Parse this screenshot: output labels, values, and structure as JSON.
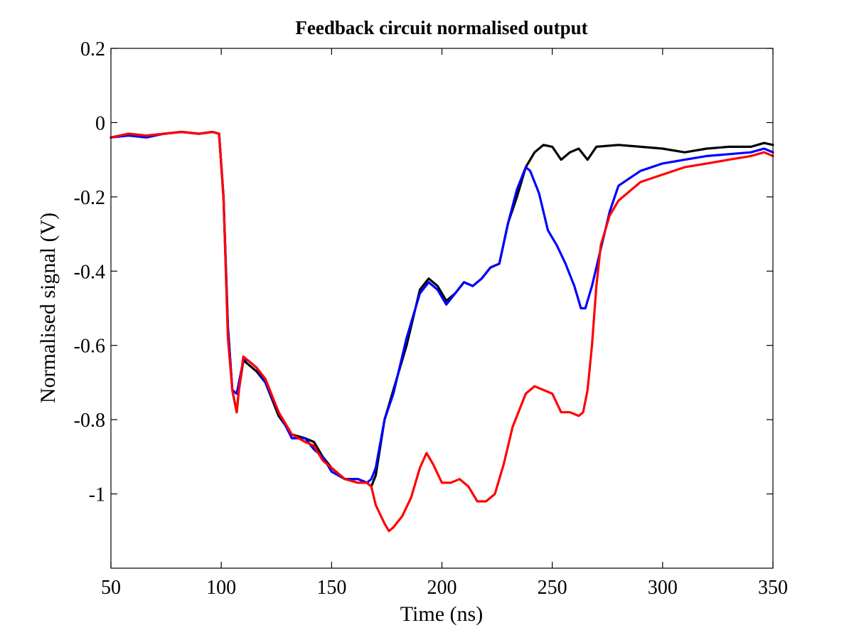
{
  "chart_data": {
    "type": "line",
    "title": "Feedback circuit normalised output",
    "xlabel": "Time (ns)",
    "ylabel": "Normalised signal (V)",
    "xlim": [
      50,
      350
    ],
    "ylim": [
      -1.2,
      0.2
    ],
    "xticks": [
      50,
      100,
      150,
      200,
      250,
      300,
      350
    ],
    "xtick_labels": [
      "50",
      "100",
      "150",
      "200",
      "250",
      "300",
      "350"
    ],
    "yticks": [
      0.2,
      0,
      -0.2,
      -0.4,
      -0.6,
      -0.8,
      -1
    ],
    "ytick_labels": [
      "0.2",
      "0",
      "-0.2",
      "-0.4",
      "-0.6",
      "-0.8",
      "-1"
    ],
    "grid": false,
    "legend": "none",
    "series": [
      {
        "color": "#000000",
        "x": [
          50,
          58,
          66,
          74,
          82,
          90,
          96,
          99,
          101,
          103,
          105,
          107,
          108,
          110,
          112,
          116,
          120,
          126,
          132,
          138,
          142,
          146,
          150,
          156,
          162,
          166,
          168,
          170,
          174,
          178,
          184,
          190,
          194,
          198,
          202,
          206,
          210,
          214,
          218,
          222,
          226,
          230,
          234,
          238,
          242,
          246,
          250,
          254,
          258,
          262,
          266,
          270,
          280,
          290,
          300,
          310,
          320,
          330,
          340,
          346,
          350
        ],
        "y": [
          -0.04,
          -0.03,
          -0.035,
          -0.03,
          -0.025,
          -0.03,
          -0.025,
          -0.03,
          -0.2,
          -0.55,
          -0.72,
          -0.78,
          -0.72,
          -0.64,
          -0.65,
          -0.67,
          -0.7,
          -0.79,
          -0.84,
          -0.85,
          -0.86,
          -0.9,
          -0.93,
          -0.96,
          -0.96,
          -0.97,
          -0.98,
          -0.95,
          -0.8,
          -0.72,
          -0.6,
          -0.45,
          -0.42,
          -0.44,
          -0.48,
          -0.46,
          -0.43,
          -0.44,
          -0.42,
          -0.39,
          -0.38,
          -0.27,
          -0.2,
          -0.12,
          -0.08,
          -0.06,
          -0.065,
          -0.1,
          -0.08,
          -0.07,
          -0.1,
          -0.065,
          -0.06,
          -0.065,
          -0.07,
          -0.08,
          -0.07,
          -0.065,
          -0.065,
          -0.055,
          -0.06
        ]
      },
      {
        "color": "#0000ff",
        "x": [
          50,
          58,
          66,
          74,
          82,
          90,
          96,
          99,
          101,
          103,
          105,
          107,
          108,
          110,
          112,
          116,
          120,
          126,
          132,
          138,
          142,
          146,
          150,
          156,
          162,
          166,
          168,
          170,
          174,
          178,
          184,
          190,
          194,
          198,
          202,
          206,
          210,
          214,
          218,
          222,
          226,
          230,
          234,
          238,
          240,
          244,
          248,
          252,
          256,
          260,
          263,
          265,
          268,
          272,
          276,
          280,
          290,
          300,
          310,
          320,
          330,
          340,
          346,
          350
        ],
        "y": [
          -0.04,
          -0.035,
          -0.04,
          -0.03,
          -0.025,
          -0.03,
          -0.025,
          -0.03,
          -0.2,
          -0.55,
          -0.72,
          -0.73,
          -0.7,
          -0.64,
          -0.64,
          -0.66,
          -0.7,
          -0.78,
          -0.85,
          -0.85,
          -0.88,
          -0.9,
          -0.94,
          -0.96,
          -0.96,
          -0.97,
          -0.96,
          -0.93,
          -0.8,
          -0.73,
          -0.58,
          -0.46,
          -0.43,
          -0.45,
          -0.49,
          -0.46,
          -0.43,
          -0.44,
          -0.42,
          -0.39,
          -0.38,
          -0.27,
          -0.18,
          -0.12,
          -0.13,
          -0.19,
          -0.29,
          -0.33,
          -0.38,
          -0.44,
          -0.5,
          -0.5,
          -0.44,
          -0.34,
          -0.24,
          -0.17,
          -0.13,
          -0.11,
          -0.1,
          -0.09,
          -0.085,
          -0.08,
          -0.07,
          -0.08
        ]
      },
      {
        "color": "#ff0000",
        "x": [
          50,
          58,
          66,
          74,
          82,
          90,
          96,
          99,
          101,
          103,
          105,
          107,
          108,
          110,
          112,
          116,
          120,
          126,
          132,
          138,
          142,
          146,
          150,
          156,
          162,
          166,
          168,
          170,
          174,
          176,
          178,
          182,
          186,
          190,
          193,
          196,
          200,
          204,
          208,
          212,
          216,
          220,
          224,
          228,
          232,
          238,
          242,
          246,
          250,
          254,
          258,
          262,
          264,
          266,
          268,
          270,
          272,
          276,
          280,
          290,
          300,
          310,
          320,
          330,
          340,
          346,
          350
        ],
        "y": [
          -0.04,
          -0.03,
          -0.035,
          -0.03,
          -0.025,
          -0.03,
          -0.025,
          -0.03,
          -0.2,
          -0.58,
          -0.72,
          -0.78,
          -0.72,
          -0.63,
          -0.64,
          -0.66,
          -0.69,
          -0.78,
          -0.84,
          -0.86,
          -0.87,
          -0.91,
          -0.93,
          -0.96,
          -0.97,
          -0.97,
          -0.98,
          -1.03,
          -1.08,
          -1.1,
          -1.09,
          -1.06,
          -1.01,
          -0.93,
          -0.89,
          -0.92,
          -0.97,
          -0.97,
          -0.96,
          -0.98,
          -1.02,
          -1.02,
          -1.0,
          -0.92,
          -0.82,
          -0.73,
          -0.71,
          -0.72,
          -0.73,
          -0.78,
          -0.78,
          -0.79,
          -0.78,
          -0.72,
          -0.6,
          -0.44,
          -0.33,
          -0.25,
          -0.21,
          -0.16,
          -0.14,
          -0.12,
          -0.11,
          -0.1,
          -0.09,
          -0.08,
          -0.09
        ]
      }
    ]
  }
}
